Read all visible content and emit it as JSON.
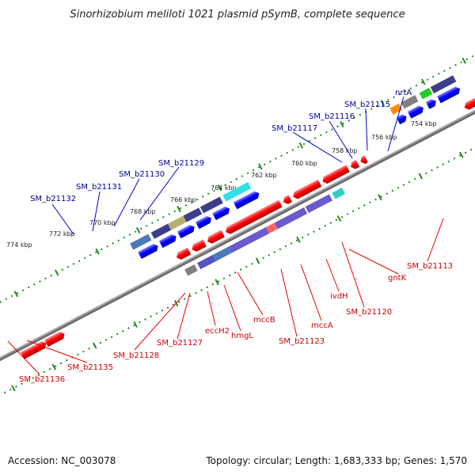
{
  "title": "Sinorhizobium meliloti 1021 plasmid pSymB, complete sequence",
  "footer": {
    "accession": "Accession: NC_003078",
    "summary": "Topology: circular; Length: 1,683,333 bp; Genes: 1,570"
  },
  "colors": {
    "forward_gene": "#ff0000",
    "reverse_gene": "#0000ff",
    "forward_label": "#cc0000",
    "reverse_label": "#000099",
    "backbone": "#808080",
    "tick": "#228b22"
  },
  "kbp_ticks": [
    "774 kbp",
    "772 kbp",
    "770 kbp",
    "768 kbp",
    "766 kbp",
    "764 kbp",
    "762 kbp",
    "760 kbp",
    "758 kbp",
    "756 kbp",
    "754 kbp"
  ],
  "labels": {
    "top": [
      "SM_b21132",
      "SM_b21131",
      "SM_b21130",
      "SM_b21129",
      "SM_b21117",
      "SM_b21116",
      "SM_b21115",
      "nrtA"
    ],
    "bottom": [
      "SM_b21136",
      "SM_b21135",
      "SM_b21128",
      "SM_b21127",
      "eccH2",
      "hmgL",
      "mccB",
      "SM_b21123",
      "mccA",
      "ivdH",
      "SM_b21120",
      "gntK",
      "SM_b21113"
    ]
  }
}
